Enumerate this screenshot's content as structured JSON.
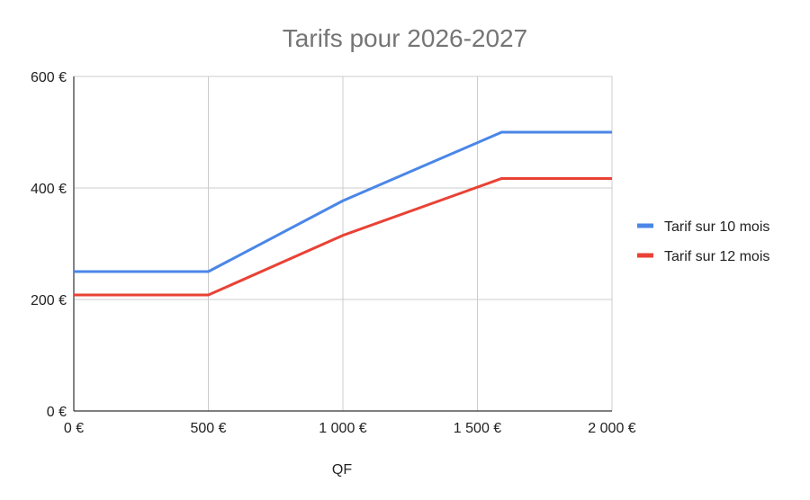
{
  "chart_data": {
    "type": "line",
    "title": "Tarifs pour 2026-2027",
    "xlabel": "QF",
    "ylabel": "",
    "xlim": [
      0,
      2000
    ],
    "ylim": [
      0,
      600
    ],
    "x_ticks": [
      {
        "value": 0,
        "label": "0 €"
      },
      {
        "value": 500,
        "label": "500 €"
      },
      {
        "value": 1000,
        "label": "1 000 €"
      },
      {
        "value": 1500,
        "label": "1 500 €"
      },
      {
        "value": 2000,
        "label": "2 000 €"
      }
    ],
    "y_ticks": [
      {
        "value": 0,
        "label": "0 €"
      },
      {
        "value": 200,
        "label": "200 €"
      },
      {
        "value": 400,
        "label": "400 €"
      },
      {
        "value": 600,
        "label": "600 €"
      }
    ],
    "grid": true,
    "legend_position": "right",
    "series": [
      {
        "name": "Tarif sur 10 mois",
        "color": "#4a86e8",
        "x": [
          0,
          500,
          1000,
          1590,
          2000
        ],
        "y": [
          250,
          250,
          377,
          500,
          500
        ]
      },
      {
        "name": "Tarif sur 12 mois",
        "color": "#e94235",
        "x": [
          0,
          500,
          1000,
          1590,
          2000
        ],
        "y": [
          208,
          208,
          315,
          417,
          417
        ]
      }
    ]
  }
}
